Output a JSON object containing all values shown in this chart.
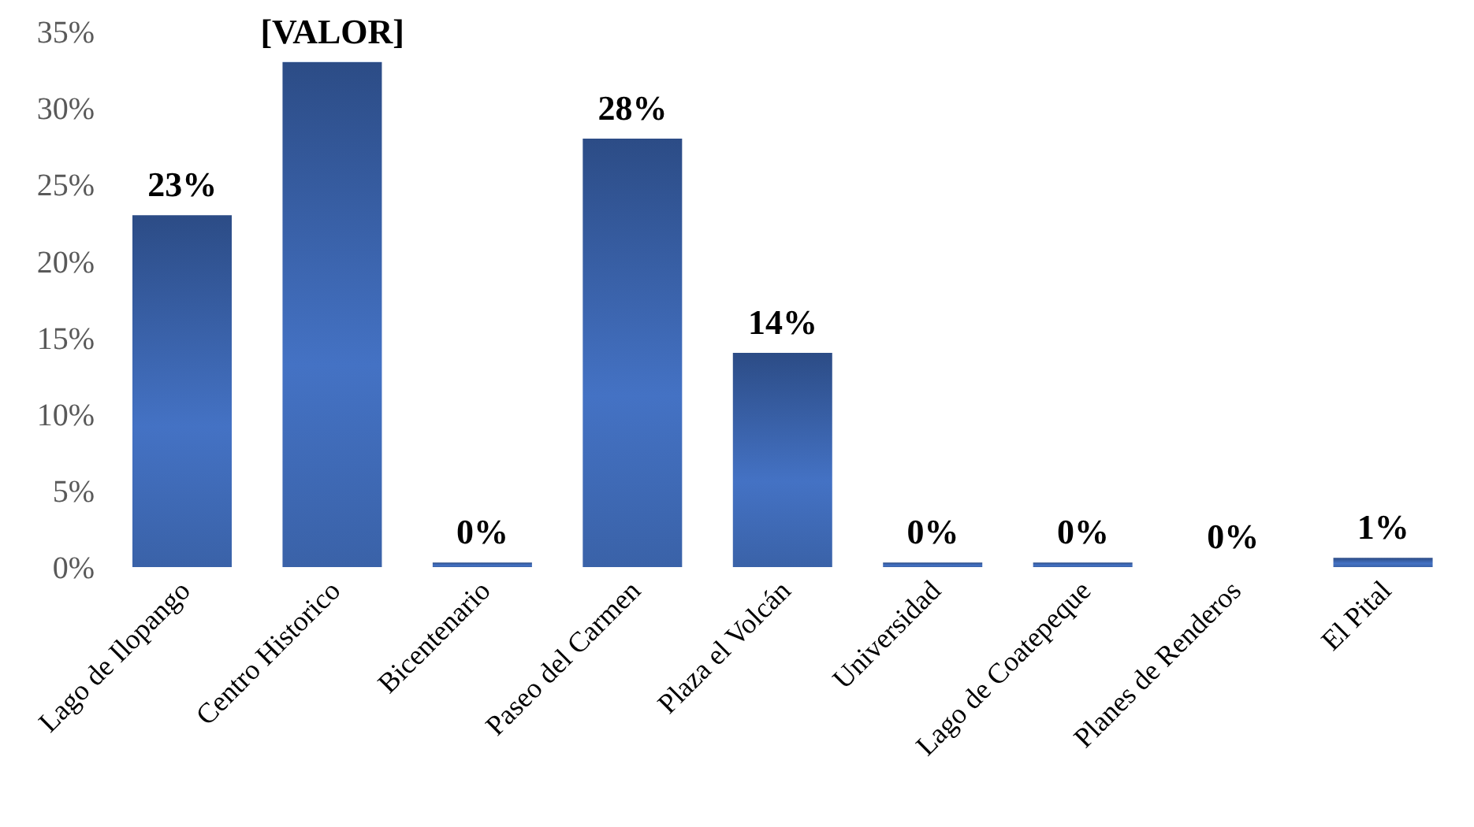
{
  "chart_data": {
    "type": "bar",
    "categories": [
      "Lago de Ilopango",
      "Centro Historico",
      "Bicentenario",
      "Paseo del Carmen",
      "Plaza el Volcán",
      "Universidad",
      "Lago de Coatepeque",
      "Planes de Renderos",
      "El Pital"
    ],
    "values": [
      23,
      33,
      0.3,
      28,
      14,
      0.3,
      0.3,
      0,
      0.6
    ],
    "value_labels": [
      "23%",
      "[VALOR]",
      "0%",
      "28%",
      "14%",
      "0%",
      "0%",
      "0%",
      "1%"
    ],
    "color": "#4472c4",
    "ylim": [
      0,
      35
    ],
    "yticks": [
      {
        "value": 0,
        "label": "0%"
      },
      {
        "value": 5,
        "label": "5%"
      },
      {
        "value": 10,
        "label": "10%"
      },
      {
        "value": 15,
        "label": "15%"
      },
      {
        "value": 20,
        "label": "20%"
      },
      {
        "value": 25,
        "label": "25%"
      },
      {
        "value": 30,
        "label": "30%"
      },
      {
        "value": 35,
        "label": "35%"
      }
    ],
    "grid": false,
    "legend": false
  }
}
